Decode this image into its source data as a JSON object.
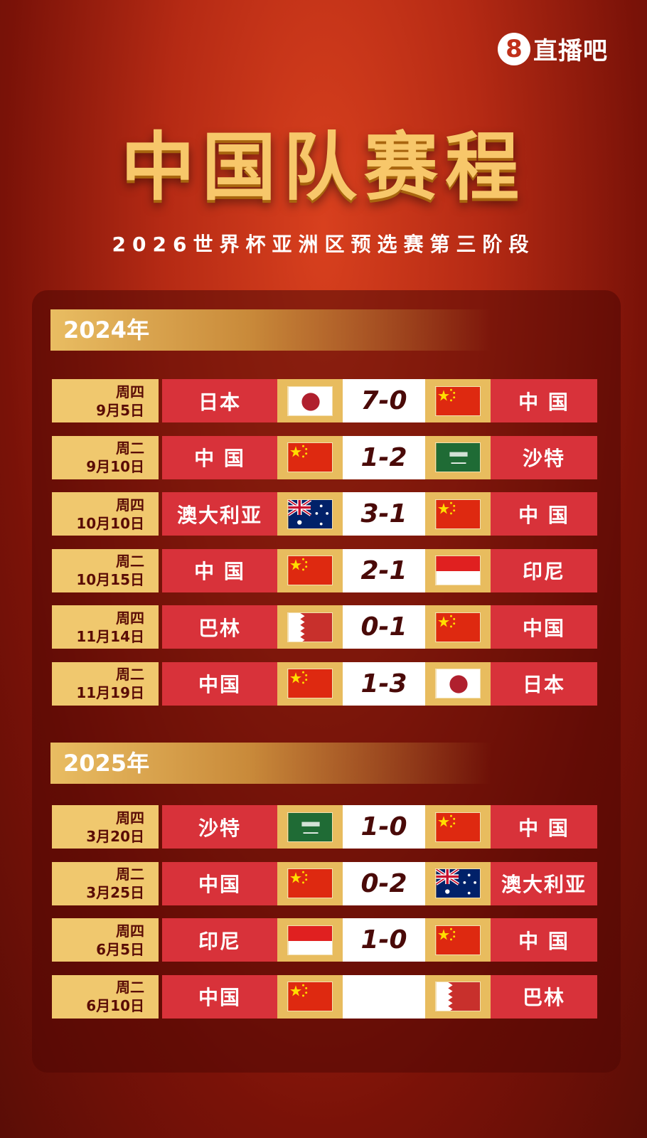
{
  "brand": {
    "logo_number": "8",
    "name": "直播吧"
  },
  "title": "中国队赛程",
  "subtitle": "2026世界杯亚洲区预选赛第三阶段",
  "colors": {
    "row_red": "#d8323a",
    "date_gold": "#f0c86e",
    "flag_cell_gold": "#e8bc5e",
    "score_text": "#4a0a08"
  },
  "years": [
    {
      "label": "2024年",
      "matches": [
        {
          "weekday": "周四",
          "date": "9月5日",
          "home": "日本",
          "home_flag": "japan",
          "score": "7-0",
          "away": "中 国",
          "away_flag": "china"
        },
        {
          "weekday": "周二",
          "date": "9月10日",
          "home": "中 国",
          "home_flag": "china",
          "score": "1-2",
          "away": "沙特",
          "away_flag": "saudi"
        },
        {
          "weekday": "周四",
          "date": "10月10日",
          "home": "澳大利亚",
          "home_flag": "australia",
          "score": "3-1",
          "away": "中 国",
          "away_flag": "china"
        },
        {
          "weekday": "周二",
          "date": "10月15日",
          "home": "中 国",
          "home_flag": "china",
          "score": "2-1",
          "away": "印尼",
          "away_flag": "indonesia"
        },
        {
          "weekday": "周四",
          "date": "11月14日",
          "home": "巴林",
          "home_flag": "bahrain",
          "score": "0-1",
          "away": "中国",
          "away_flag": "china"
        },
        {
          "weekday": "周二",
          "date": "11月19日",
          "home": "中国",
          "home_flag": "china",
          "score": "1-3",
          "away": "日本",
          "away_flag": "japan"
        }
      ]
    },
    {
      "label": "2025年",
      "matches": [
        {
          "weekday": "周四",
          "date": "3月20日",
          "home": "沙特",
          "home_flag": "saudi",
          "score": "1-0",
          "away": "中 国",
          "away_flag": "china"
        },
        {
          "weekday": "周二",
          "date": "3月25日",
          "home": "中国",
          "home_flag": "china",
          "score": "0-2",
          "away": "澳大利亚",
          "away_flag": "australia"
        },
        {
          "weekday": "周四",
          "date": "6月5日",
          "home": "印尼",
          "home_flag": "indonesia",
          "score": "1-0",
          "away": "中 国",
          "away_flag": "china"
        },
        {
          "weekday": "周二",
          "date": "6月10日",
          "home": "中国",
          "home_flag": "china",
          "score": "",
          "away": "巴林",
          "away_flag": "bahrain"
        }
      ]
    }
  ]
}
